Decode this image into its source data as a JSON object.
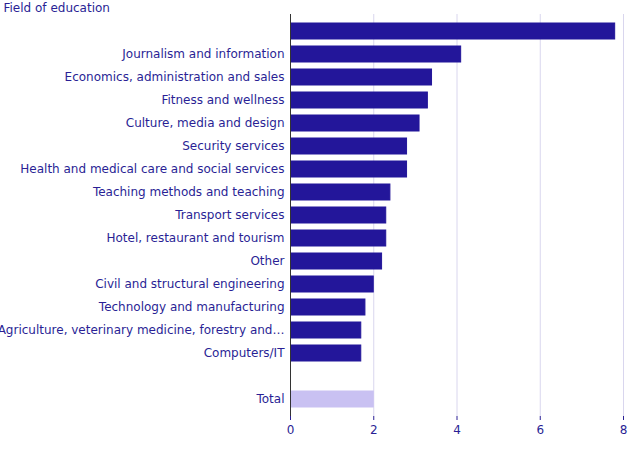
{
  "chart_data": {
    "type": "bar",
    "orientation": "horizontal",
    "y_label": "Field of education",
    "categories": [
      null,
      "Journalism and information",
      "Economics, administration and sales",
      "Fitness and wellness",
      "Culture, media and design",
      "Security services",
      "Health and medical care and social services",
      "Teaching methods and teaching",
      "Transport services",
      "Hotel, restaurant and tourism",
      "Other",
      "Civil and structural engineering",
      "Technology and manufacturing",
      "Agriculture, veterinary medicine, forestry and…",
      "Computers/IT",
      null,
      "Total"
    ],
    "values": [
      7.8,
      4.1,
      3.4,
      3.3,
      3.1,
      2.8,
      2.8,
      2.4,
      2.3,
      2.3,
      2.2,
      2.0,
      1.8,
      1.7,
      1.7,
      null,
      2.0
    ],
    "colors": [
      "#23169a",
      "#23169a",
      "#23169a",
      "#23169a",
      "#23169a",
      "#23169a",
      "#23169a",
      "#23169a",
      "#23169a",
      "#23169a",
      "#23169a",
      "#23169a",
      "#23169a",
      "#23169a",
      "#23169a",
      null,
      "#c9c1f2"
    ],
    "xlim": [
      0,
      8
    ],
    "xticks": [
      0,
      2,
      4,
      6,
      8
    ],
    "grid": true
  }
}
